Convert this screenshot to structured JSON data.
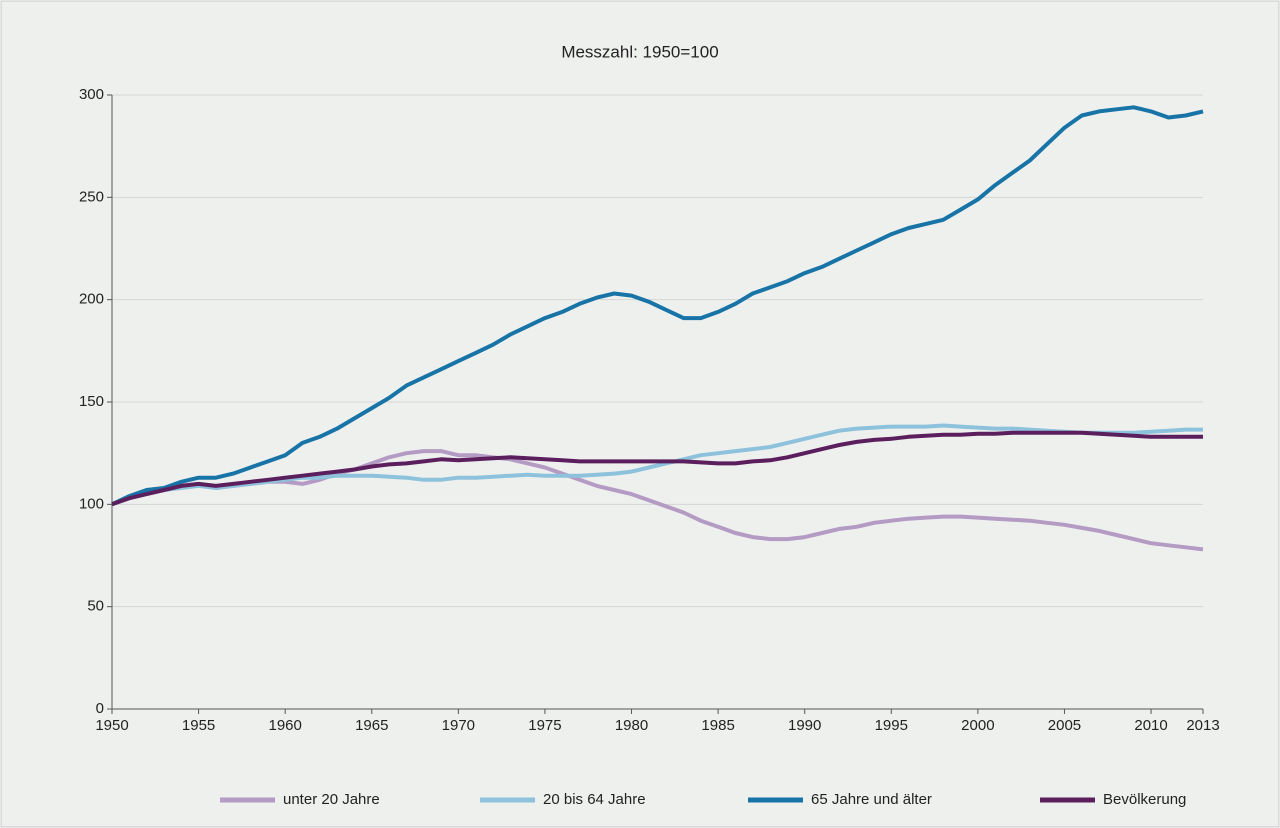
{
  "chart_data": {
    "type": "line",
    "title": "Messzahl: 1950=100",
    "x": [
      1950,
      1951,
      1952,
      1953,
      1954,
      1955,
      1956,
      1957,
      1958,
      1959,
      1960,
      1961,
      1962,
      1963,
      1964,
      1965,
      1966,
      1967,
      1968,
      1969,
      1970,
      1971,
      1972,
      1973,
      1974,
      1975,
      1976,
      1977,
      1978,
      1979,
      1980,
      1981,
      1982,
      1983,
      1984,
      1985,
      1986,
      1987,
      1988,
      1989,
      1990,
      1991,
      1992,
      1993,
      1994,
      1995,
      1996,
      1997,
      1998,
      1999,
      2000,
      2001,
      2002,
      2003,
      2004,
      2005,
      2006,
      2007,
      2008,
      2009,
      2010,
      2011,
      2012,
      2013
    ],
    "series": [
      {
        "name": "unter 20 Jahre",
        "color": "#b49bc3",
        "values": [
          100,
          103,
          105,
          107,
          109,
          110,
          108,
          109,
          110,
          111,
          111,
          110,
          112,
          115,
          117,
          120,
          123,
          125,
          126,
          126,
          124,
          124,
          123,
          122,
          120,
          118,
          115,
          112,
          109,
          107,
          105,
          102,
          99,
          96,
          92,
          89,
          86,
          84,
          83,
          83,
          84,
          86,
          88,
          89,
          91,
          92,
          93,
          93.5,
          94,
          94,
          93.5,
          93,
          92.5,
          92,
          91,
          90,
          88.5,
          87,
          85,
          83,
          81,
          80,
          79,
          78
        ]
      },
      {
        "name": "20 bis 64 Jahre",
        "color": "#8ec2dc",
        "values": [
          100,
          103,
          106,
          107,
          108,
          109,
          108,
          109,
          110,
          111,
          112,
          113,
          113,
          114,
          114,
          114,
          113.5,
          113,
          112,
          112,
          113,
          113,
          113.5,
          114,
          114.5,
          114,
          114,
          114,
          114.5,
          115,
          116,
          118,
          120,
          122,
          124,
          125,
          126,
          127,
          128,
          130,
          132,
          134,
          136,
          137,
          137.5,
          138,
          138,
          138,
          138.5,
          138,
          137.5,
          137,
          137,
          136.5,
          136,
          135.5,
          135,
          135,
          135,
          135,
          135.5,
          136,
          136.5,
          136.5
        ]
      },
      {
        "name": "65 Jahre und älter",
        "color": "#1874a7",
        "values": [
          100,
          104,
          107,
          108,
          111,
          113,
          113,
          115,
          118,
          121,
          124,
          130,
          133,
          137,
          142,
          147,
          152,
          158,
          162,
          166,
          170,
          174,
          178,
          183,
          187,
          191,
          194,
          198,
          201,
          203,
          202,
          199,
          195,
          191,
          191,
          194,
          198,
          203,
          206,
          209,
          213,
          216,
          220,
          224,
          228,
          232,
          235,
          237,
          239,
          244,
          249,
          256,
          262,
          268,
          276,
          284,
          290,
          292,
          293,
          294,
          292,
          289,
          290,
          292
        ]
      },
      {
        "name": "Bevölkerung",
        "color": "#5b1f5e",
        "values": [
          100,
          103,
          105,
          107,
          109,
          110,
          109,
          110,
          111,
          112,
          113,
          114,
          115,
          116,
          117,
          118.5,
          119.5,
          120,
          121,
          122,
          121.5,
          122,
          122.5,
          123,
          122.5,
          122,
          121.5,
          121,
          121,
          121,
          121,
          121,
          121,
          121,
          120.5,
          120,
          120,
          121,
          121.5,
          123,
          125,
          127,
          129,
          130.5,
          131.5,
          132,
          133,
          133.5,
          134,
          134,
          134.5,
          134.5,
          135,
          135,
          135,
          135,
          135,
          134.5,
          134,
          133.5,
          133,
          133,
          133,
          133
        ]
      }
    ],
    "xlim": [
      1950,
      2013
    ],
    "xticks": [
      1950,
      1955,
      1960,
      1965,
      1970,
      1975,
      1980,
      1985,
      1990,
      1995,
      2000,
      2005,
      2010,
      2013
    ],
    "ylim": [
      0,
      300
    ],
    "yticks": [
      0,
      50,
      100,
      150,
      200,
      250,
      300
    ],
    "grid": true,
    "legend": "bottom"
  }
}
